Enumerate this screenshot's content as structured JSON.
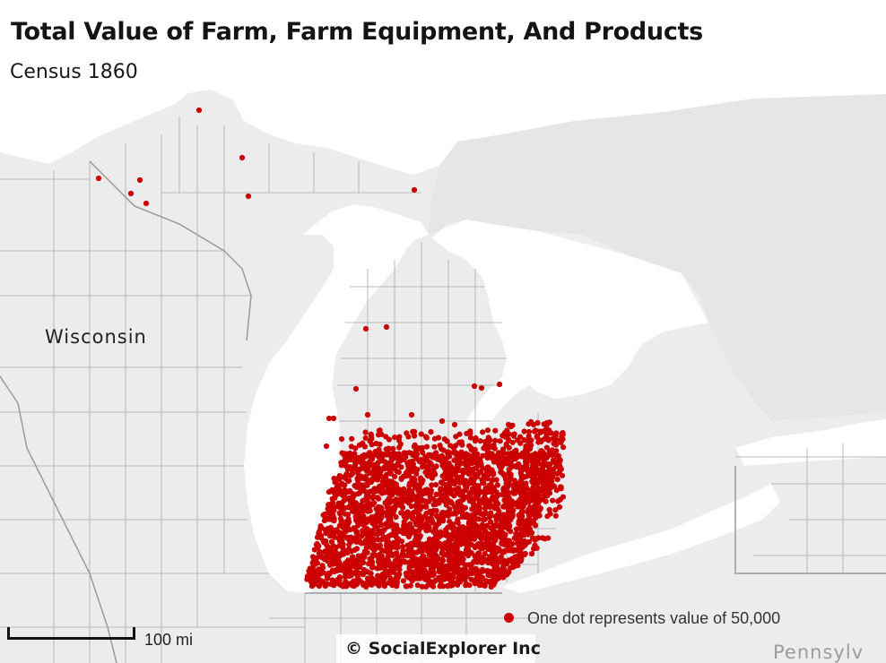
{
  "header": {
    "title": "Total Value of Farm, Farm Equipment, And Products",
    "subtitle": "Census 1860"
  },
  "map": {
    "labels": [
      {
        "id": "wisconsin",
        "text": "Wisconsin"
      },
      {
        "id": "pennsylvania",
        "text": "Pennsylv"
      }
    ]
  },
  "legend": {
    "text": "One dot represents value of 50,000",
    "dot_color": "#cc0000"
  },
  "scale": {
    "label": "100 mi"
  },
  "credit": {
    "text": "© SocialExplorer Inc"
  },
  "colors": {
    "land": "#ececec",
    "land_dark": "#e3e3e3",
    "water": "#ffffff",
    "borders": "#b8b8b8",
    "dots": "#cc0000"
  }
}
